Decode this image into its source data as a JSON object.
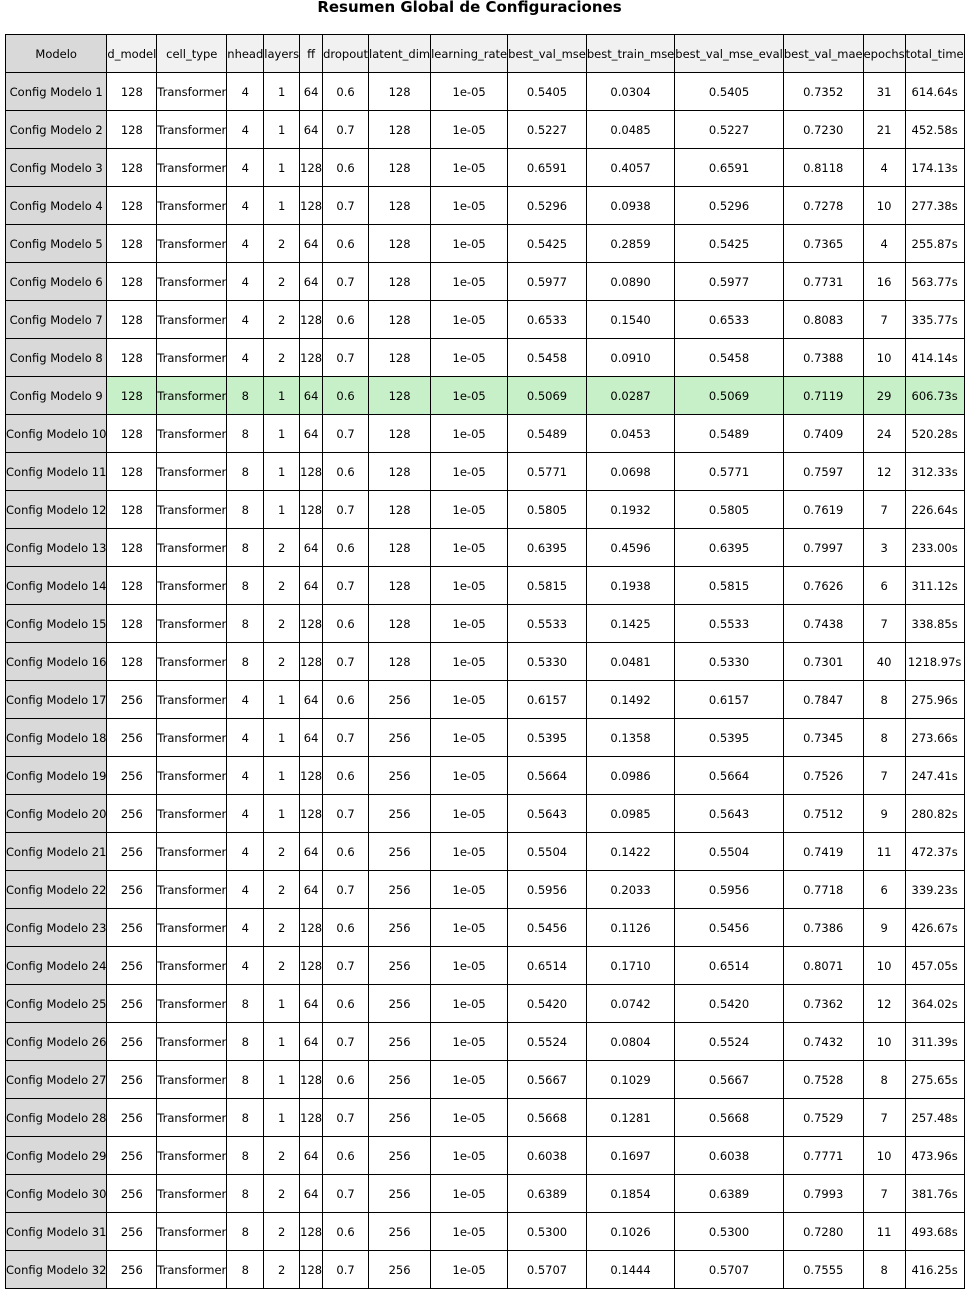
{
  "chart_data": {
    "type": "table",
    "title": "Resumen Global de Configuraciones",
    "columns": [
      "Modelo",
      "d_model",
      "cell_type",
      "nhead",
      "layers",
      "ff",
      "dropout",
      "latent_dim",
      "learning_rate",
      "best_val_mse",
      "best_train_mse",
      "best_val_mse_eval",
      "best_val_mae",
      "epochs",
      "total_time"
    ],
    "rows": [
      [
        "Config Modelo 1",
        "128",
        "Transformer",
        "4",
        "1",
        "64",
        "0.6",
        "128",
        "1e-05",
        "0.5405",
        "0.0304",
        "0.5405",
        "0.7352",
        "31",
        "614.64s"
      ],
      [
        "Config Modelo 2",
        "128",
        "Transformer",
        "4",
        "1",
        "64",
        "0.7",
        "128",
        "1e-05",
        "0.5227",
        "0.0485",
        "0.5227",
        "0.7230",
        "21",
        "452.58s"
      ],
      [
        "Config Modelo 3",
        "128",
        "Transformer",
        "4",
        "1",
        "128",
        "0.6",
        "128",
        "1e-05",
        "0.6591",
        "0.4057",
        "0.6591",
        "0.8118",
        "4",
        "174.13s"
      ],
      [
        "Config Modelo 4",
        "128",
        "Transformer",
        "4",
        "1",
        "128",
        "0.7",
        "128",
        "1e-05",
        "0.5296",
        "0.0938",
        "0.5296",
        "0.7278",
        "10",
        "277.38s"
      ],
      [
        "Config Modelo 5",
        "128",
        "Transformer",
        "4",
        "2",
        "64",
        "0.6",
        "128",
        "1e-05",
        "0.5425",
        "0.2859",
        "0.5425",
        "0.7365",
        "4",
        "255.87s"
      ],
      [
        "Config Modelo 6",
        "128",
        "Transformer",
        "4",
        "2",
        "64",
        "0.7",
        "128",
        "1e-05",
        "0.5977",
        "0.0890",
        "0.5977",
        "0.7731",
        "16",
        "563.77s"
      ],
      [
        "Config Modelo 7",
        "128",
        "Transformer",
        "4",
        "2",
        "128",
        "0.6",
        "128",
        "1e-05",
        "0.6533",
        "0.1540",
        "0.6533",
        "0.8083",
        "7",
        "335.77s"
      ],
      [
        "Config Modelo 8",
        "128",
        "Transformer",
        "4",
        "2",
        "128",
        "0.7",
        "128",
        "1e-05",
        "0.5458",
        "0.0910",
        "0.5458",
        "0.7388",
        "10",
        "414.14s"
      ],
      [
        "Config Modelo 9",
        "128",
        "Transformer",
        "8",
        "1",
        "64",
        "0.6",
        "128",
        "1e-05",
        "0.5069",
        "0.0287",
        "0.5069",
        "0.7119",
        "29",
        "606.73s"
      ],
      [
        "Config Modelo 10",
        "128",
        "Transformer",
        "8",
        "1",
        "64",
        "0.7",
        "128",
        "1e-05",
        "0.5489",
        "0.0453",
        "0.5489",
        "0.7409",
        "24",
        "520.28s"
      ],
      [
        "Config Modelo 11",
        "128",
        "Transformer",
        "8",
        "1",
        "128",
        "0.6",
        "128",
        "1e-05",
        "0.5771",
        "0.0698",
        "0.5771",
        "0.7597",
        "12",
        "312.33s"
      ],
      [
        "Config Modelo 12",
        "128",
        "Transformer",
        "8",
        "1",
        "128",
        "0.7",
        "128",
        "1e-05",
        "0.5805",
        "0.1932",
        "0.5805",
        "0.7619",
        "7",
        "226.64s"
      ],
      [
        "Config Modelo 13",
        "128",
        "Transformer",
        "8",
        "2",
        "64",
        "0.6",
        "128",
        "1e-05",
        "0.6395",
        "0.4596",
        "0.6395",
        "0.7997",
        "3",
        "233.00s"
      ],
      [
        "Config Modelo 14",
        "128",
        "Transformer",
        "8",
        "2",
        "64",
        "0.7",
        "128",
        "1e-05",
        "0.5815",
        "0.1938",
        "0.5815",
        "0.7626",
        "6",
        "311.12s"
      ],
      [
        "Config Modelo 15",
        "128",
        "Transformer",
        "8",
        "2",
        "128",
        "0.6",
        "128",
        "1e-05",
        "0.5533",
        "0.1425",
        "0.5533",
        "0.7438",
        "7",
        "338.85s"
      ],
      [
        "Config Modelo 16",
        "128",
        "Transformer",
        "8",
        "2",
        "128",
        "0.7",
        "128",
        "1e-05",
        "0.5330",
        "0.0481",
        "0.5330",
        "0.7301",
        "40",
        "1218.97s"
      ],
      [
        "Config Modelo 17",
        "256",
        "Transformer",
        "4",
        "1",
        "64",
        "0.6",
        "256",
        "1e-05",
        "0.6157",
        "0.1492",
        "0.6157",
        "0.7847",
        "8",
        "275.96s"
      ],
      [
        "Config Modelo 18",
        "256",
        "Transformer",
        "4",
        "1",
        "64",
        "0.7",
        "256",
        "1e-05",
        "0.5395",
        "0.1358",
        "0.5395",
        "0.7345",
        "8",
        "273.66s"
      ],
      [
        "Config Modelo 19",
        "256",
        "Transformer",
        "4",
        "1",
        "128",
        "0.6",
        "256",
        "1e-05",
        "0.5664",
        "0.0986",
        "0.5664",
        "0.7526",
        "7",
        "247.41s"
      ],
      [
        "Config Modelo 20",
        "256",
        "Transformer",
        "4",
        "1",
        "128",
        "0.7",
        "256",
        "1e-05",
        "0.5643",
        "0.0985",
        "0.5643",
        "0.7512",
        "9",
        "280.82s"
      ],
      [
        "Config Modelo 21",
        "256",
        "Transformer",
        "4",
        "2",
        "64",
        "0.6",
        "256",
        "1e-05",
        "0.5504",
        "0.1422",
        "0.5504",
        "0.7419",
        "11",
        "472.37s"
      ],
      [
        "Config Modelo 22",
        "256",
        "Transformer",
        "4",
        "2",
        "64",
        "0.7",
        "256",
        "1e-05",
        "0.5956",
        "0.2033",
        "0.5956",
        "0.7718",
        "6",
        "339.23s"
      ],
      [
        "Config Modelo 23",
        "256",
        "Transformer",
        "4",
        "2",
        "128",
        "0.6",
        "256",
        "1e-05",
        "0.5456",
        "0.1126",
        "0.5456",
        "0.7386",
        "9",
        "426.67s"
      ],
      [
        "Config Modelo 24",
        "256",
        "Transformer",
        "4",
        "2",
        "128",
        "0.7",
        "256",
        "1e-05",
        "0.6514",
        "0.1710",
        "0.6514",
        "0.8071",
        "10",
        "457.05s"
      ],
      [
        "Config Modelo 25",
        "256",
        "Transformer",
        "8",
        "1",
        "64",
        "0.6",
        "256",
        "1e-05",
        "0.5420",
        "0.0742",
        "0.5420",
        "0.7362",
        "12",
        "364.02s"
      ],
      [
        "Config Modelo 26",
        "256",
        "Transformer",
        "8",
        "1",
        "64",
        "0.7",
        "256",
        "1e-05",
        "0.5524",
        "0.0804",
        "0.5524",
        "0.7432",
        "10",
        "311.39s"
      ],
      [
        "Config Modelo 27",
        "256",
        "Transformer",
        "8",
        "1",
        "128",
        "0.6",
        "256",
        "1e-05",
        "0.5667",
        "0.1029",
        "0.5667",
        "0.7528",
        "8",
        "275.65s"
      ],
      [
        "Config Modelo 28",
        "256",
        "Transformer",
        "8",
        "1",
        "128",
        "0.7",
        "256",
        "1e-05",
        "0.5668",
        "0.1281",
        "0.5668",
        "0.7529",
        "7",
        "257.48s"
      ],
      [
        "Config Modelo 29",
        "256",
        "Transformer",
        "8",
        "2",
        "64",
        "0.6",
        "256",
        "1e-05",
        "0.6038",
        "0.1697",
        "0.6038",
        "0.7771",
        "10",
        "473.96s"
      ],
      [
        "Config Modelo 30",
        "256",
        "Transformer",
        "8",
        "2",
        "64",
        "0.7",
        "256",
        "1e-05",
        "0.6389",
        "0.1854",
        "0.6389",
        "0.7993",
        "7",
        "381.76s"
      ],
      [
        "Config Modelo 31",
        "256",
        "Transformer",
        "8",
        "2",
        "128",
        "0.6",
        "256",
        "1e-05",
        "0.5300",
        "0.1026",
        "0.5300",
        "0.7280",
        "11",
        "493.68s"
      ],
      [
        "Config Modelo 32",
        "256",
        "Transformer",
        "8",
        "2",
        "128",
        "0.7",
        "256",
        "1e-05",
        "0.5707",
        "0.1444",
        "0.5707",
        "0.7555",
        "8",
        "416.25s"
      ]
    ],
    "highlighted_row": "Config Modelo 9",
    "colors": {
      "header_bg": "#f1f1f1",
      "first_column_bg": "#d9d9d9",
      "highlight_bg": "#c8f0c8",
      "border": "#000000"
    }
  }
}
